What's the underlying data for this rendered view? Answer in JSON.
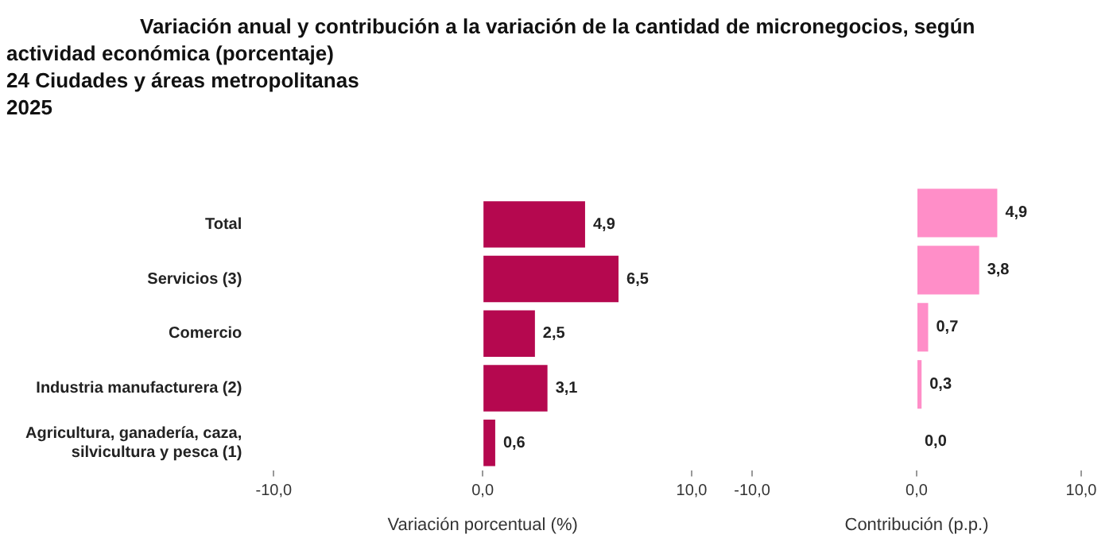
{
  "chart_data": [
    {
      "type": "bar",
      "orientation": "horizontal",
      "title": "Variación anual y contribución a la variación de la cantidad de micronegocios, según actividad económica (porcentaje)",
      "subtitle": "24 Ciudades y áreas metropolitanas\n2025",
      "categories": [
        "Total",
        "Servicios (3)",
        "Comercio",
        "Industria manufacturera (2)",
        "Agricultura, ganadería, caza, silvicultura y pesca (1)"
      ],
      "values": [
        4.9,
        6.5,
        2.5,
        3.1,
        0.6
      ],
      "value_labels": [
        "4,9",
        "6,5",
        "2,5",
        "3,1",
        "0,6"
      ],
      "color": "#b5084f",
      "xlim": [
        -10,
        10
      ],
      "xticks": [
        {
          "value": -10,
          "label": "-10,0"
        },
        {
          "value": 0,
          "label": "0,0"
        },
        {
          "value": 10,
          "label": "10,0"
        }
      ],
      "xlabel": "Variación porcentual (%)"
    },
    {
      "type": "bar",
      "orientation": "horizontal",
      "categories": [
        null,
        null,
        null,
        null,
        null
      ],
      "values": [
        4.9,
        3.8,
        0.7,
        0.3,
        0.0
      ],
      "value_labels": [
        "4,9",
        "3,8",
        "0,7",
        "0,3",
        "0,0"
      ],
      "color": "#ff8ec8",
      "xlim": [
        -10,
        10
      ],
      "xticks": [
        {
          "value": -10,
          "label": "-10,0"
        },
        {
          "value": 0,
          "label": "0,0"
        },
        {
          "value": 10,
          "label": "10,0"
        }
      ],
      "xlabel": "Contribución (p.p.)",
      "tick_labels": "x"
    }
  ]
}
